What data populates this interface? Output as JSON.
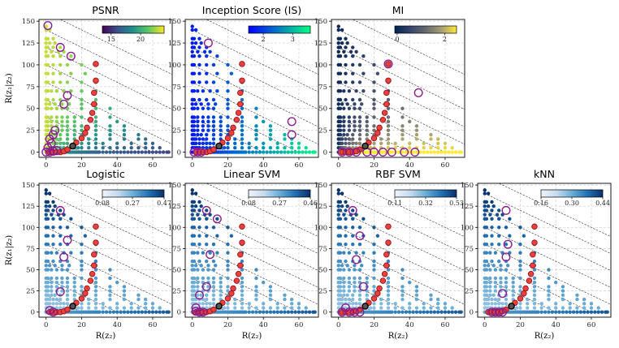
{
  "chart_data": {
    "type": "scatter",
    "shared": {
      "xlabel": "R(z₂)",
      "ylabel": "R(z₁|z₂)",
      "xlim": [
        -4,
        71
      ],
      "ylim": [
        -6,
        152
      ],
      "xticks": [
        0,
        20,
        40,
        60
      ],
      "yticks": [
        0,
        25,
        50,
        75,
        100,
        125,
        150
      ],
      "grid": true,
      "iso_lines_x_plus_y": [
        20,
        40,
        60,
        80,
        100,
        120,
        140,
        160
      ],
      "points_description": "grid of rate pairs: R(z2) from 0 to 69 with rows at R(z1|z2) = 0..144; marker color = metric value",
      "x_values_per_row": {
        "0": [
          0,
          1,
          2,
          3,
          4,
          5,
          6,
          7,
          8,
          9,
          10,
          11,
          12,
          13,
          14,
          15,
          16,
          17,
          18,
          19,
          20,
          21,
          22,
          23,
          24,
          25,
          26,
          27,
          28,
          29,
          30,
          32,
          34,
          36,
          38,
          40,
          42,
          44,
          46,
          48,
          50,
          52,
          54,
          56,
          58,
          60,
          62,
          64,
          66,
          68,
          69
        ],
        "5": [
          0,
          1,
          2,
          3,
          4,
          6,
          8,
          10,
          12,
          14,
          16,
          18,
          20,
          24,
          28,
          32,
          36,
          40,
          44,
          48,
          52,
          56,
          60,
          64
        ],
        "10": [
          0,
          1,
          2,
          4,
          6,
          8,
          10,
          12,
          16,
          20,
          24,
          28,
          32,
          40,
          48,
          56,
          60
        ],
        "15": [
          0,
          1,
          2,
          4,
          6,
          8,
          12,
          16,
          20,
          24,
          28,
          36,
          44,
          52,
          56
        ],
        "20": [
          0,
          1,
          3,
          5,
          8,
          12,
          16,
          20,
          28,
          36,
          44,
          52
        ],
        "25": [
          0,
          1,
          3,
          6,
          9,
          12,
          16,
          20,
          28,
          36,
          44
        ],
        "30": [
          0,
          1,
          3,
          6,
          9,
          12,
          16,
          20,
          28,
          36,
          44
        ],
        "35": [
          0,
          1,
          3,
          6,
          9,
          12,
          16,
          28,
          40
        ],
        "40": [
          0,
          1,
          3,
          6,
          9,
          12,
          16,
          20,
          28,
          36
        ],
        "50": [
          0,
          1,
          3,
          6,
          9,
          12,
          20,
          28,
          36
        ],
        "55": [
          0,
          2,
          5,
          9,
          13,
          20,
          28
        ],
        "60": [
          0,
          1,
          4,
          8,
          12,
          20,
          28
        ],
        "70": [
          0,
          1,
          3,
          6,
          10,
          14,
          20,
          28
        ],
        "80": [
          0,
          1,
          4,
          8,
          12,
          20,
          28
        ],
        "90": [
          0,
          1,
          4,
          8,
          14,
          22
        ],
        "100": [
          0,
          1,
          4,
          8,
          12,
          20,
          28
        ],
        "110": [
          0,
          1,
          4,
          8,
          14
        ],
        "115": [
          0,
          3,
          7,
          10
        ],
        "120": [
          0,
          1,
          4,
          8
        ],
        "125": [
          0,
          2,
          5
        ],
        "130": [
          0,
          1,
          4
        ],
        "140": [
          0,
          2
        ],
        "144": [
          0
        ]
      },
      "red_frontier": [
        [
          2,
          0
        ],
        [
          4,
          0
        ],
        [
          6,
          0
        ],
        [
          8,
          0
        ],
        [
          10,
          1
        ],
        [
          12,
          3
        ],
        [
          15,
          7
        ],
        [
          17,
          11
        ],
        [
          20,
          16
        ],
        [
          22,
          22
        ],
        [
          23,
          28
        ],
        [
          25,
          37
        ],
        [
          26,
          45
        ],
        [
          27,
          55
        ],
        [
          27,
          68
        ],
        [
          28,
          82
        ],
        [
          28,
          101
        ]
      ],
      "black_marker": [
        15,
        7
      ]
    },
    "panels": [
      {
        "title": "PSNR",
        "colormap": "viridis",
        "color_direction": "x",
        "colorbar": {
          "range": [
            13.5,
            24.0
          ],
          "ticks": [
            15,
            20
          ]
        },
        "purple_circles": [
          [
            1,
            145
          ],
          [
            8,
            120
          ],
          [
            14,
            110
          ],
          [
            12,
            65
          ],
          [
            10,
            55
          ],
          [
            5,
            25
          ],
          [
            4,
            20
          ],
          [
            2,
            15
          ],
          [
            3,
            10
          ],
          [
            1,
            5
          ],
          [
            0,
            0
          ],
          [
            2,
            0
          ],
          [
            4,
            1
          ],
          [
            6,
            2
          ]
        ]
      },
      {
        "title": "Inception Score (IS)",
        "colormap": "winter",
        "color_direction": "x",
        "colorbar": {
          "range": [
            1.5,
            3.6
          ],
          "ticks": [
            2,
            3
          ]
        },
        "purple_circles": [
          [
            9,
            125
          ],
          [
            56,
            35
          ],
          [
            56,
            20
          ],
          [
            1,
            0
          ],
          [
            3,
            0
          ],
          [
            5,
            0
          ]
        ]
      },
      {
        "title": "MI",
        "colormap": "cividis",
        "color_direction": "x",
        "colorbar": {
          "range": [
            -0.1,
            2.5
          ],
          "ticks": [
            0,
            2
          ]
        },
        "purple_circles": [
          [
            28,
            101
          ],
          [
            45,
            68
          ],
          [
            2,
            0
          ],
          [
            6,
            0
          ],
          [
            10,
            0
          ],
          [
            16,
            0
          ],
          [
            20,
            0
          ],
          [
            25,
            0
          ],
          [
            30,
            0
          ],
          [
            37,
            0
          ],
          [
            43,
            0
          ]
        ]
      },
      {
        "title": "Logistic",
        "colormap": "blues",
        "color_direction": "y",
        "colorbar": {
          "range": [
            0.08,
            0.47
          ],
          "ticks": [
            0.08,
            0.27,
            0.47
          ],
          "ticklabels": [
            "0.08",
            "0.27",
            "0.47"
          ]
        },
        "purple_circles": [
          [
            8,
            120
          ],
          [
            12,
            85
          ],
          [
            10,
            65
          ],
          [
            8,
            24
          ],
          [
            2,
            2
          ],
          [
            4,
            0
          ]
        ]
      },
      {
        "title": "Linear SVM",
        "colormap": "blues",
        "color_direction": "y",
        "colorbar": {
          "range": [
            0.08,
            0.46
          ],
          "ticks": [
            0.08,
            0.27,
            0.46
          ],
          "ticklabels": [
            "0.08",
            "0.27",
            "0.46"
          ]
        },
        "purple_circles": [
          [
            8,
            120
          ],
          [
            14,
            110
          ],
          [
            10,
            68
          ],
          [
            8,
            30
          ],
          [
            4,
            20
          ],
          [
            2,
            5
          ],
          [
            2,
            1
          ],
          [
            4,
            0
          ],
          [
            6,
            0
          ]
        ]
      },
      {
        "title": "RBF SVM",
        "colormap": "blues",
        "color_direction": "y",
        "colorbar": {
          "range": [
            0.11,
            0.53
          ],
          "ticks": [
            0.11,
            0.32,
            0.53
          ],
          "ticklabels": [
            "0.11",
            "0.32",
            "0.53"
          ]
        },
        "purple_circles": [
          [
            8,
            120
          ],
          [
            12,
            90
          ],
          [
            10,
            62
          ],
          [
            14,
            30
          ],
          [
            4,
            5
          ],
          [
            2,
            0
          ],
          [
            6,
            0
          ],
          [
            9,
            0
          ],
          [
            12,
            0
          ]
        ]
      },
      {
        "title": "kNN",
        "colormap": "blues",
        "color_direction": "y",
        "colorbar": {
          "range": [
            0.16,
            0.44
          ],
          "ticks": [
            0.16,
            0.3,
            0.44
          ],
          "ticklabels": [
            "0.16",
            "0.30",
            "0.44"
          ]
        },
        "purple_circles": [
          [
            12,
            120
          ],
          [
            13,
            80
          ],
          [
            12,
            65
          ],
          [
            10,
            22
          ],
          [
            4,
            0
          ],
          [
            6,
            0
          ],
          [
            8,
            0
          ],
          [
            10,
            0
          ]
        ]
      }
    ]
  }
}
